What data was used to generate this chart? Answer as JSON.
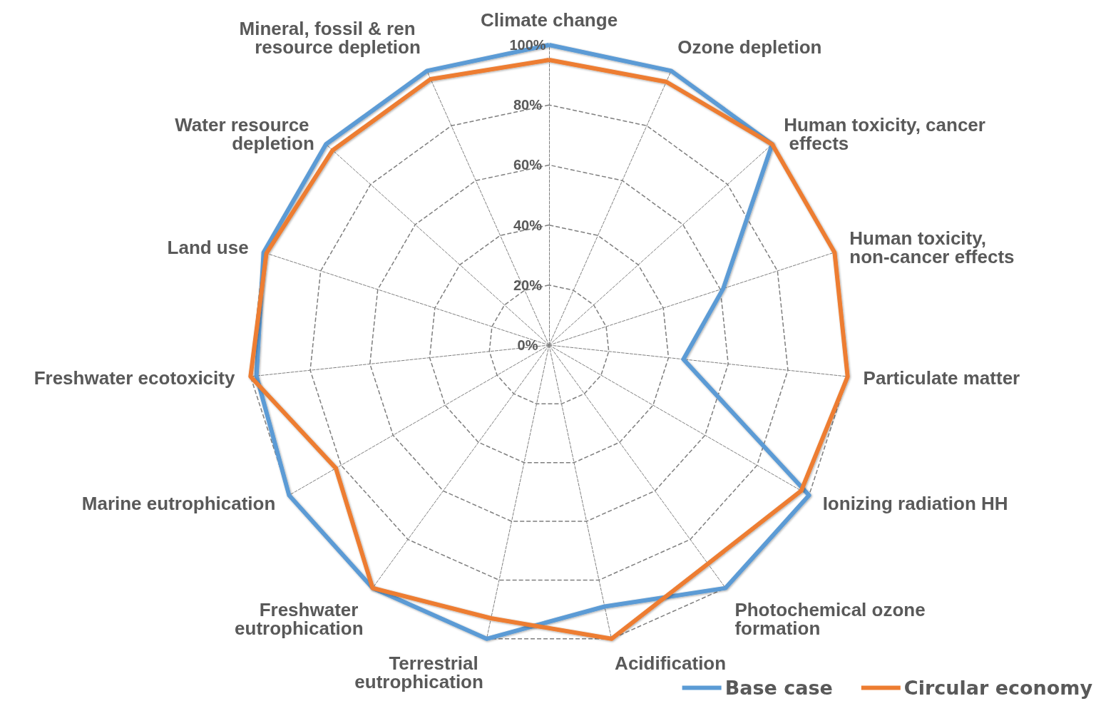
{
  "chart_data": {
    "type": "radar",
    "categories": [
      "Climate change",
      "Ozone depletion",
      "Human toxicity, cancer effects",
      "Human toxicity, non-cancer effects",
      "Particulate matter",
      "Ionizing radiation HH",
      "Photochemical ozone formation",
      "Acidification",
      "Terrestrial eutrophication",
      "Freshwater eutrophication",
      "Marine eutrophication",
      "Freshwater ecotoxicity",
      "Land use",
      "Water resource depletion",
      "Mineral, fossil & ren resource depletion"
    ],
    "series": [
      {
        "name": "Base case",
        "color": "#5b9bd5",
        "values": [
          100,
          100,
          100,
          61,
          45,
          100,
          100,
          89,
          100,
          100,
          100,
          98,
          100,
          100,
          100
        ]
      },
      {
        "name": "Circular economy",
        "color": "#ed7d31",
        "values": [
          95,
          96,
          100,
          100,
          100,
          97,
          90,
          100,
          93,
          100,
          82,
          100,
          99,
          97,
          97
        ]
      }
    ],
    "ylim": [
      0,
      100
    ],
    "yticks": [
      {
        "value": 0,
        "label": "0%"
      },
      {
        "value": 20,
        "label": "20%"
      },
      {
        "value": 40,
        "label": "40%"
      },
      {
        "value": 60,
        "label": "60%"
      },
      {
        "value": 80,
        "label": "80%"
      },
      {
        "value": 100,
        "label": "100%"
      }
    ],
    "grid": true,
    "legend": "bottom right",
    "marker": "none",
    "line_style": "solid"
  }
}
